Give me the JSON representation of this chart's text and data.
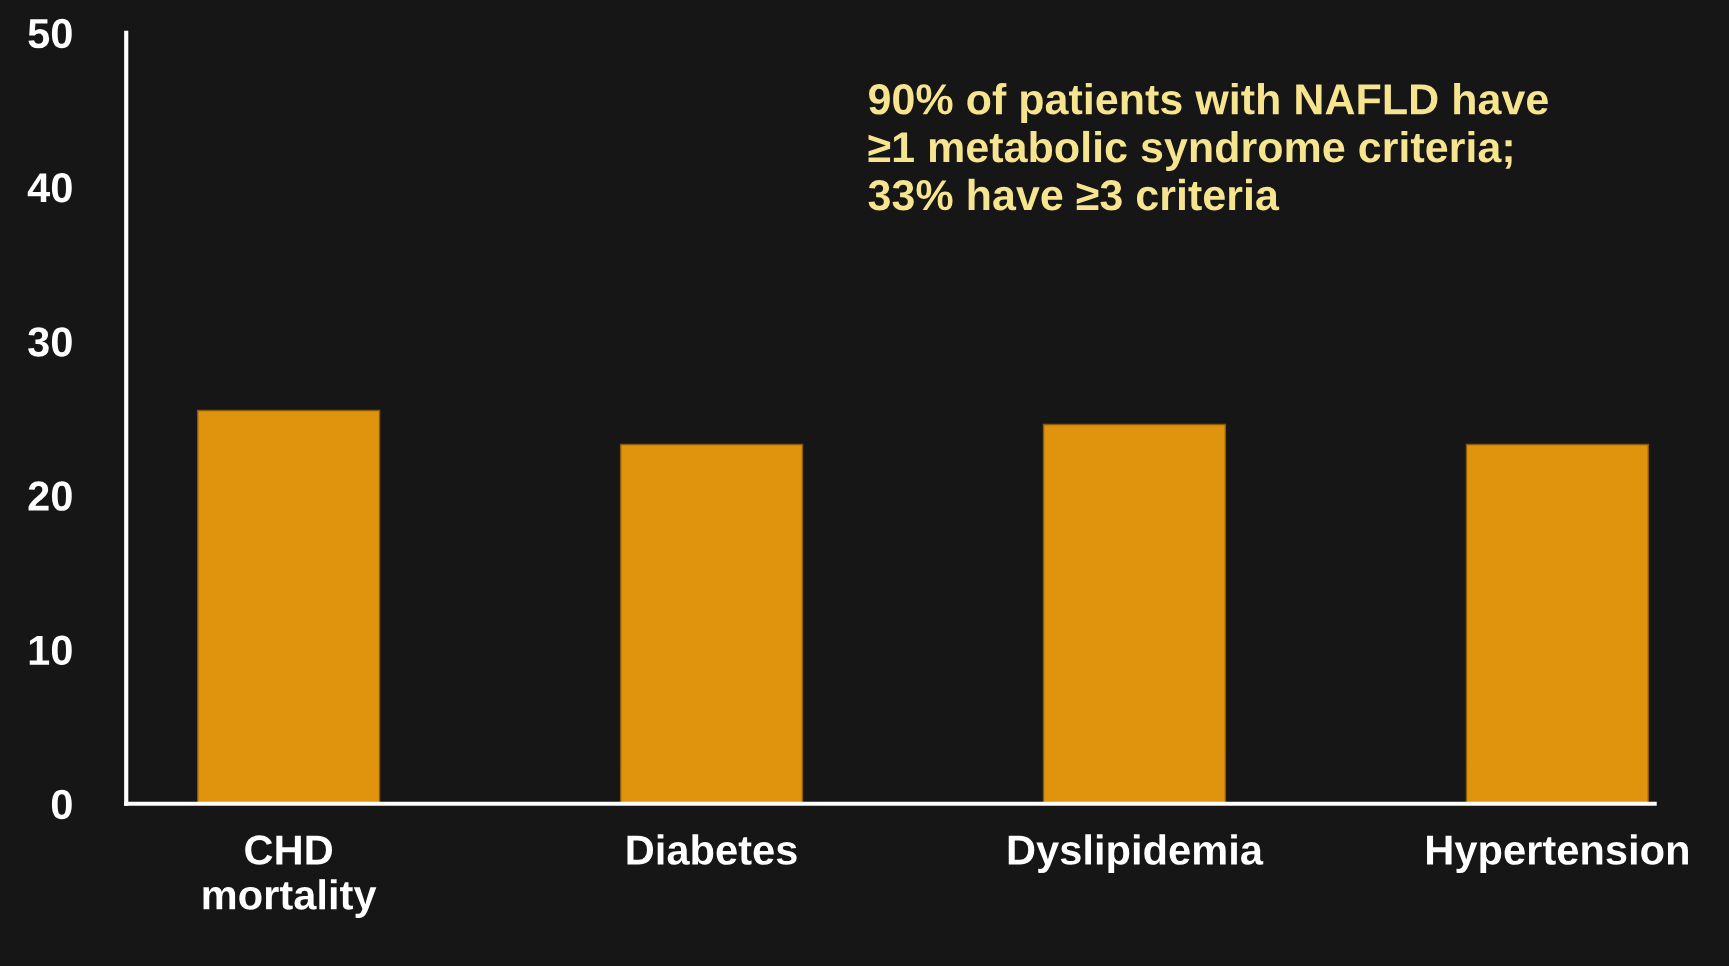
{
  "chart_data": {
    "type": "bar",
    "categories": [
      "CHD\nmortality",
      "Diabetes",
      "Dyslipidemia",
      "Hypertension"
    ],
    "values": [
      25.5,
      23.3,
      24.6,
      23.3
    ],
    "color": "#e0940e",
    "ylim": [
      0,
      50
    ],
    "yticks": [
      0,
      10,
      20,
      30,
      40,
      50
    ],
    "grid": false,
    "annotations": [
      "90% of patients with NAFLD have\n≥1 metabolic syndrome criteria;\n33% have ≥3 criteria"
    ]
  }
}
